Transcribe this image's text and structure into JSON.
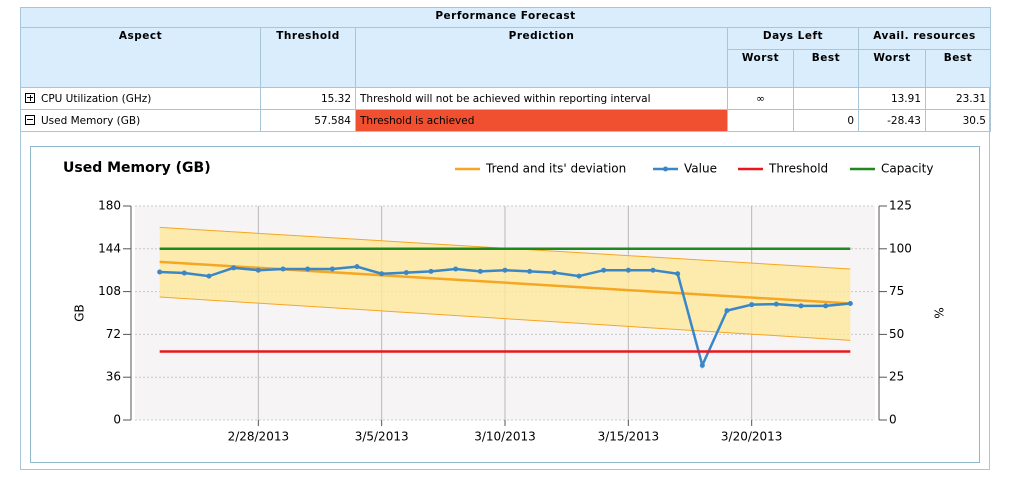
{
  "table": {
    "title": "Performance Forecast",
    "headers": {
      "aspect": "Aspect",
      "threshold": "Threshold",
      "prediction": "Prediction",
      "days_left": "Days Left",
      "avail": "Avail. resources",
      "days_worst": "Worst",
      "days_best": "Best",
      "avail_worst": "Worst",
      "avail_best": "Best"
    },
    "rows": [
      {
        "aspect": "CPU Utilization (GHz)",
        "threshold": "15.32",
        "prediction": "Threshold will not be achieved within reporting interval",
        "days_worst": "∞",
        "avail_worst": "13.91",
        "avail_best": "23.31"
      },
      {
        "aspect": "Used Memory (GB)",
        "threshold": "57.584",
        "prediction": "Threshold is achieved",
        "days_best": "0",
        "avail_worst": "-28.43",
        "avail_best": "30.5"
      }
    ]
  },
  "chart_data": {
    "type": "line",
    "title": "Used Memory (GB)",
    "y_label": "GB",
    "y2_label": "%",
    "xlim": [
      "2/23/2013",
      "3/25/2013"
    ],
    "xticks": [
      "2/28/2013",
      "3/5/2013",
      "3/10/2013",
      "3/15/2013",
      "3/20/2013"
    ],
    "ylim": [
      0,
      180
    ],
    "yticks": [
      0,
      36,
      72,
      108,
      144,
      180
    ],
    "y2lim": [
      0,
      125
    ],
    "y2ticks": [
      0,
      25,
      50,
      75,
      100,
      125
    ],
    "grid": true,
    "series": [
      {
        "name": "Trend and its' deviation",
        "color": "#f5a623",
        "band_color": "#fde99a",
        "x": [
          "2/24/2013",
          "3/24/2013"
        ],
        "values": [
          133,
          98
        ],
        "upper": [
          162,
          127
        ],
        "lower": [
          103.5,
          67
        ]
      },
      {
        "name": "Value",
        "color": "#3a87c8",
        "markers": true,
        "x": [
          "2/24/2013",
          "2/25/2013",
          "2/26/2013",
          "2/27/2013",
          "2/28/2013",
          "3/1/2013",
          "3/2/2013",
          "3/3/2013",
          "3/4/2013",
          "3/5/2013",
          "3/6/2013",
          "3/7/2013",
          "3/8/2013",
          "3/9/2013",
          "3/10/2013",
          "3/11/2013",
          "3/12/2013",
          "3/13/2013",
          "3/14/2013",
          "3/15/2013",
          "3/16/2013",
          "3/17/2013",
          "3/18/2013",
          "3/19/2013",
          "3/20/2013",
          "3/21/2013",
          "3/22/2013",
          "3/23/2013",
          "3/24/2013"
        ],
        "values": [
          124.5,
          123.6,
          121,
          128,
          126,
          127,
          127,
          127,
          129,
          123,
          124,
          125,
          127,
          125,
          126,
          125,
          124,
          121,
          126,
          126,
          126,
          123,
          46,
          92,
          97,
          97.5,
          96,
          96,
          98
        ]
      },
      {
        "name": "Threshold",
        "color": "#e8171f",
        "x": [
          "2/24/2013",
          "3/24/2013"
        ],
        "values": [
          57.584,
          57.584
        ]
      },
      {
        "name": "Capacity",
        "color": "#1e8a1e",
        "x": [
          "2/24/2013",
          "3/24/2013"
        ],
        "values": [
          144,
          144
        ]
      }
    ]
  }
}
